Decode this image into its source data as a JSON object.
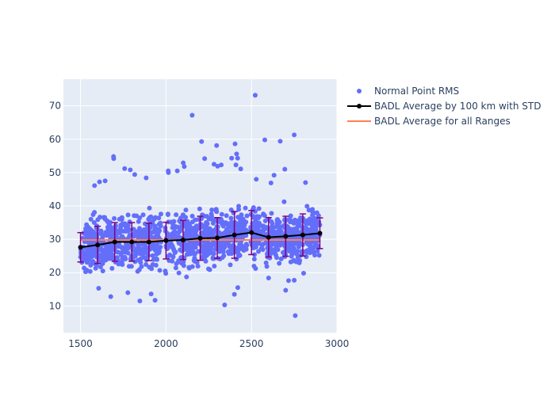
{
  "chart_data": {
    "type": "scatter",
    "xlim": [
      1400,
      3000
    ],
    "ylim": [
      2,
      78
    ],
    "x_ticks": [
      1500,
      2000,
      2500,
      3000
    ],
    "y_ticks": [
      10,
      20,
      30,
      40,
      50,
      60,
      70
    ],
    "grid": true,
    "legend_position": "top-right outside",
    "colors": {
      "plot_bg": "#e5ecf6",
      "grid": "#ffffff",
      "scatter": "#636efa",
      "average": "#000000",
      "error_bars": "#800080",
      "overall": "#ff7f50"
    },
    "series": [
      {
        "name": "Normal Point RMS",
        "kind": "scatter",
        "x_range": [
          1500,
          2900
        ],
        "x_gaps": [
          [
            1975,
            1995
          ],
          [
            2475,
            2495
          ]
        ],
        "core_y_range": [
          20,
          38
        ],
        "outliers": [
          [
            2522,
            73.2
          ],
          [
            2153,
            67.2
          ],
          [
            2750,
            61.3
          ],
          [
            2208,
            59.3
          ],
          [
            2404,
            58.6
          ],
          [
            2578,
            59.8
          ],
          [
            2668,
            59.4
          ],
          [
            2296,
            58.1
          ],
          [
            1693,
            54.8
          ],
          [
            1694,
            54.2
          ],
          [
            2226,
            54.2
          ],
          [
            2384,
            54.3
          ],
          [
            2413,
            55.6
          ],
          [
            2419,
            54.3
          ],
          [
            1758,
            51.2
          ],
          [
            1791,
            50.8
          ],
          [
            2014,
            50.0
          ],
          [
            2013,
            50.5
          ],
          [
            2066,
            50.5
          ],
          [
            2101,
            52.9
          ],
          [
            2107,
            51.8
          ],
          [
            2281,
            52.5
          ],
          [
            2302,
            51.9
          ],
          [
            2323,
            52.3
          ],
          [
            2409,
            52.3
          ],
          [
            2437,
            51.1
          ],
          [
            2695,
            51.0
          ],
          [
            2816,
            47.0
          ],
          [
            1582,
            46.1
          ],
          [
            1644,
            47.5
          ],
          [
            1611,
            47.2
          ],
          [
            1884,
            48.4
          ],
          [
            1817,
            49.4
          ],
          [
            2614,
            46.9
          ],
          [
            2632,
            49.2
          ],
          [
            2528,
            48.0
          ],
          [
            1847,
            11.5
          ],
          [
            1936,
            11.7
          ],
          [
            1677,
            12.8
          ],
          [
            1913,
            13.6
          ],
          [
            2343,
            10.3
          ],
          [
            2400,
            13.5
          ],
          [
            2756,
            7.1
          ],
          [
            1777,
            14.0
          ],
          [
            1606,
            15.3
          ],
          [
            2420,
            15.5
          ],
          [
            2700,
            14.7
          ],
          [
            2717,
            17.6
          ],
          [
            2750,
            17.7
          ],
          [
            2600,
            18.4
          ],
          [
            2805,
            19.8
          ],
          [
            2120,
            18.7
          ]
        ]
      },
      {
        "name": "BADL Average by 100 km with STD",
        "kind": "line_error",
        "x": [
          1500,
          1600,
          1700,
          1800,
          1900,
          2000,
          2100,
          2200,
          2300,
          2400,
          2500,
          2600,
          2700,
          2800,
          2900
        ],
        "y": [
          27.6,
          28.3,
          29.2,
          29.2,
          29.2,
          29.6,
          29.8,
          30.3,
          30.4,
          31.3,
          32.0,
          30.6,
          30.9,
          31.3,
          31.8
        ],
        "std": [
          4.4,
          5.6,
          5.8,
          5.8,
          5.6,
          5.5,
          5.9,
          6.6,
          6.1,
          7.0,
          6.6,
          5.9,
          6.0,
          6.3,
          4.6
        ]
      },
      {
        "name": "BADL Average for all Ranges",
        "kind": "hline",
        "x": [
          1500,
          2900
        ],
        "y": 29.8
      }
    ]
  }
}
